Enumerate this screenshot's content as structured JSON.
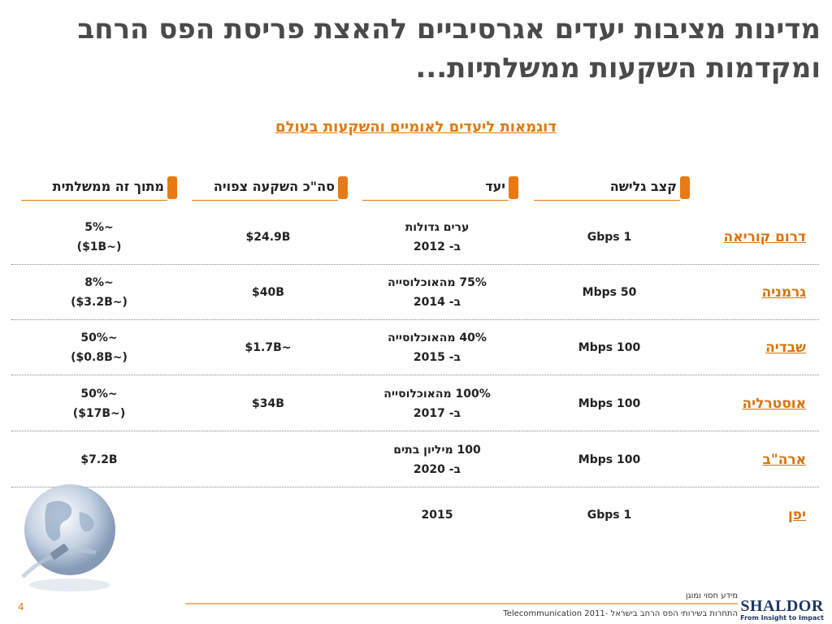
{
  "title": "מדינות מציבות יעדים אגרסיביים להאצת פריסת הפס הרחב ומקדמות השקעות ממשלתיות...",
  "subtitle": "דוגמאות ליעדים לאומיים והשקעות בעולם",
  "columns": {
    "speed": "קצב גלישה",
    "target": "יעד",
    "investment": "סה\"כ השקעה צפויה",
    "government": "מתוך זה ממשלתית"
  },
  "rows": [
    {
      "country": "דרום קוריאה",
      "speed": "1 Gbps",
      "target1": "ערים גדולות",
      "target2": "ב- 2012",
      "investment": "$24.9B",
      "gov1": "~5%",
      "gov2": "(~$1B)"
    },
    {
      "country": "גרמניה",
      "speed": "50 Mbps",
      "target1": "75% מהאוכלוסייה",
      "target2": "ב-  2014",
      "investment": "$40B",
      "gov1": "~8%",
      "gov2": "(~$3.2B)"
    },
    {
      "country": "שבדיה",
      "speed": "100 Mbps",
      "target1": "40% מהאוכלוסייה",
      "target2": "ב- 2015",
      "investment": "~$1.7B",
      "gov1": "~50%",
      "gov2": "(~$0.8B)"
    },
    {
      "country": "אוסטרליה",
      "speed": "100 Mbps",
      "target1": "100% מהאוכלוסייה",
      "target2": "ב- 2017",
      "investment": "$34B",
      "gov1": "~50%",
      "gov2": "(~$17B)"
    },
    {
      "country": "ארה\"ב",
      "speed": "100 Mbps",
      "target1": "100 מיליון בתים",
      "target2": "ב- 2020",
      "investment": "",
      "gov1": "$7.2B",
      "gov2": ""
    },
    {
      "country": "יפן",
      "speed": "1 Gbps",
      "target1": "2015",
      "target2": "",
      "investment": "",
      "gov1": "",
      "gov2": ""
    }
  ],
  "footer": {
    "page_number": "4",
    "line1": "מידע חסוי ומוגן",
    "line2": "התחרות בשירותי הפס הרחב בישראל -Telecommunication 2011",
    "logo_name": "SHALDOR",
    "logo_tagline": "From Insight to Impact"
  },
  "colors": {
    "accent": "#e87a14",
    "title": "#4a4a4a",
    "logo": "#1f3763"
  }
}
